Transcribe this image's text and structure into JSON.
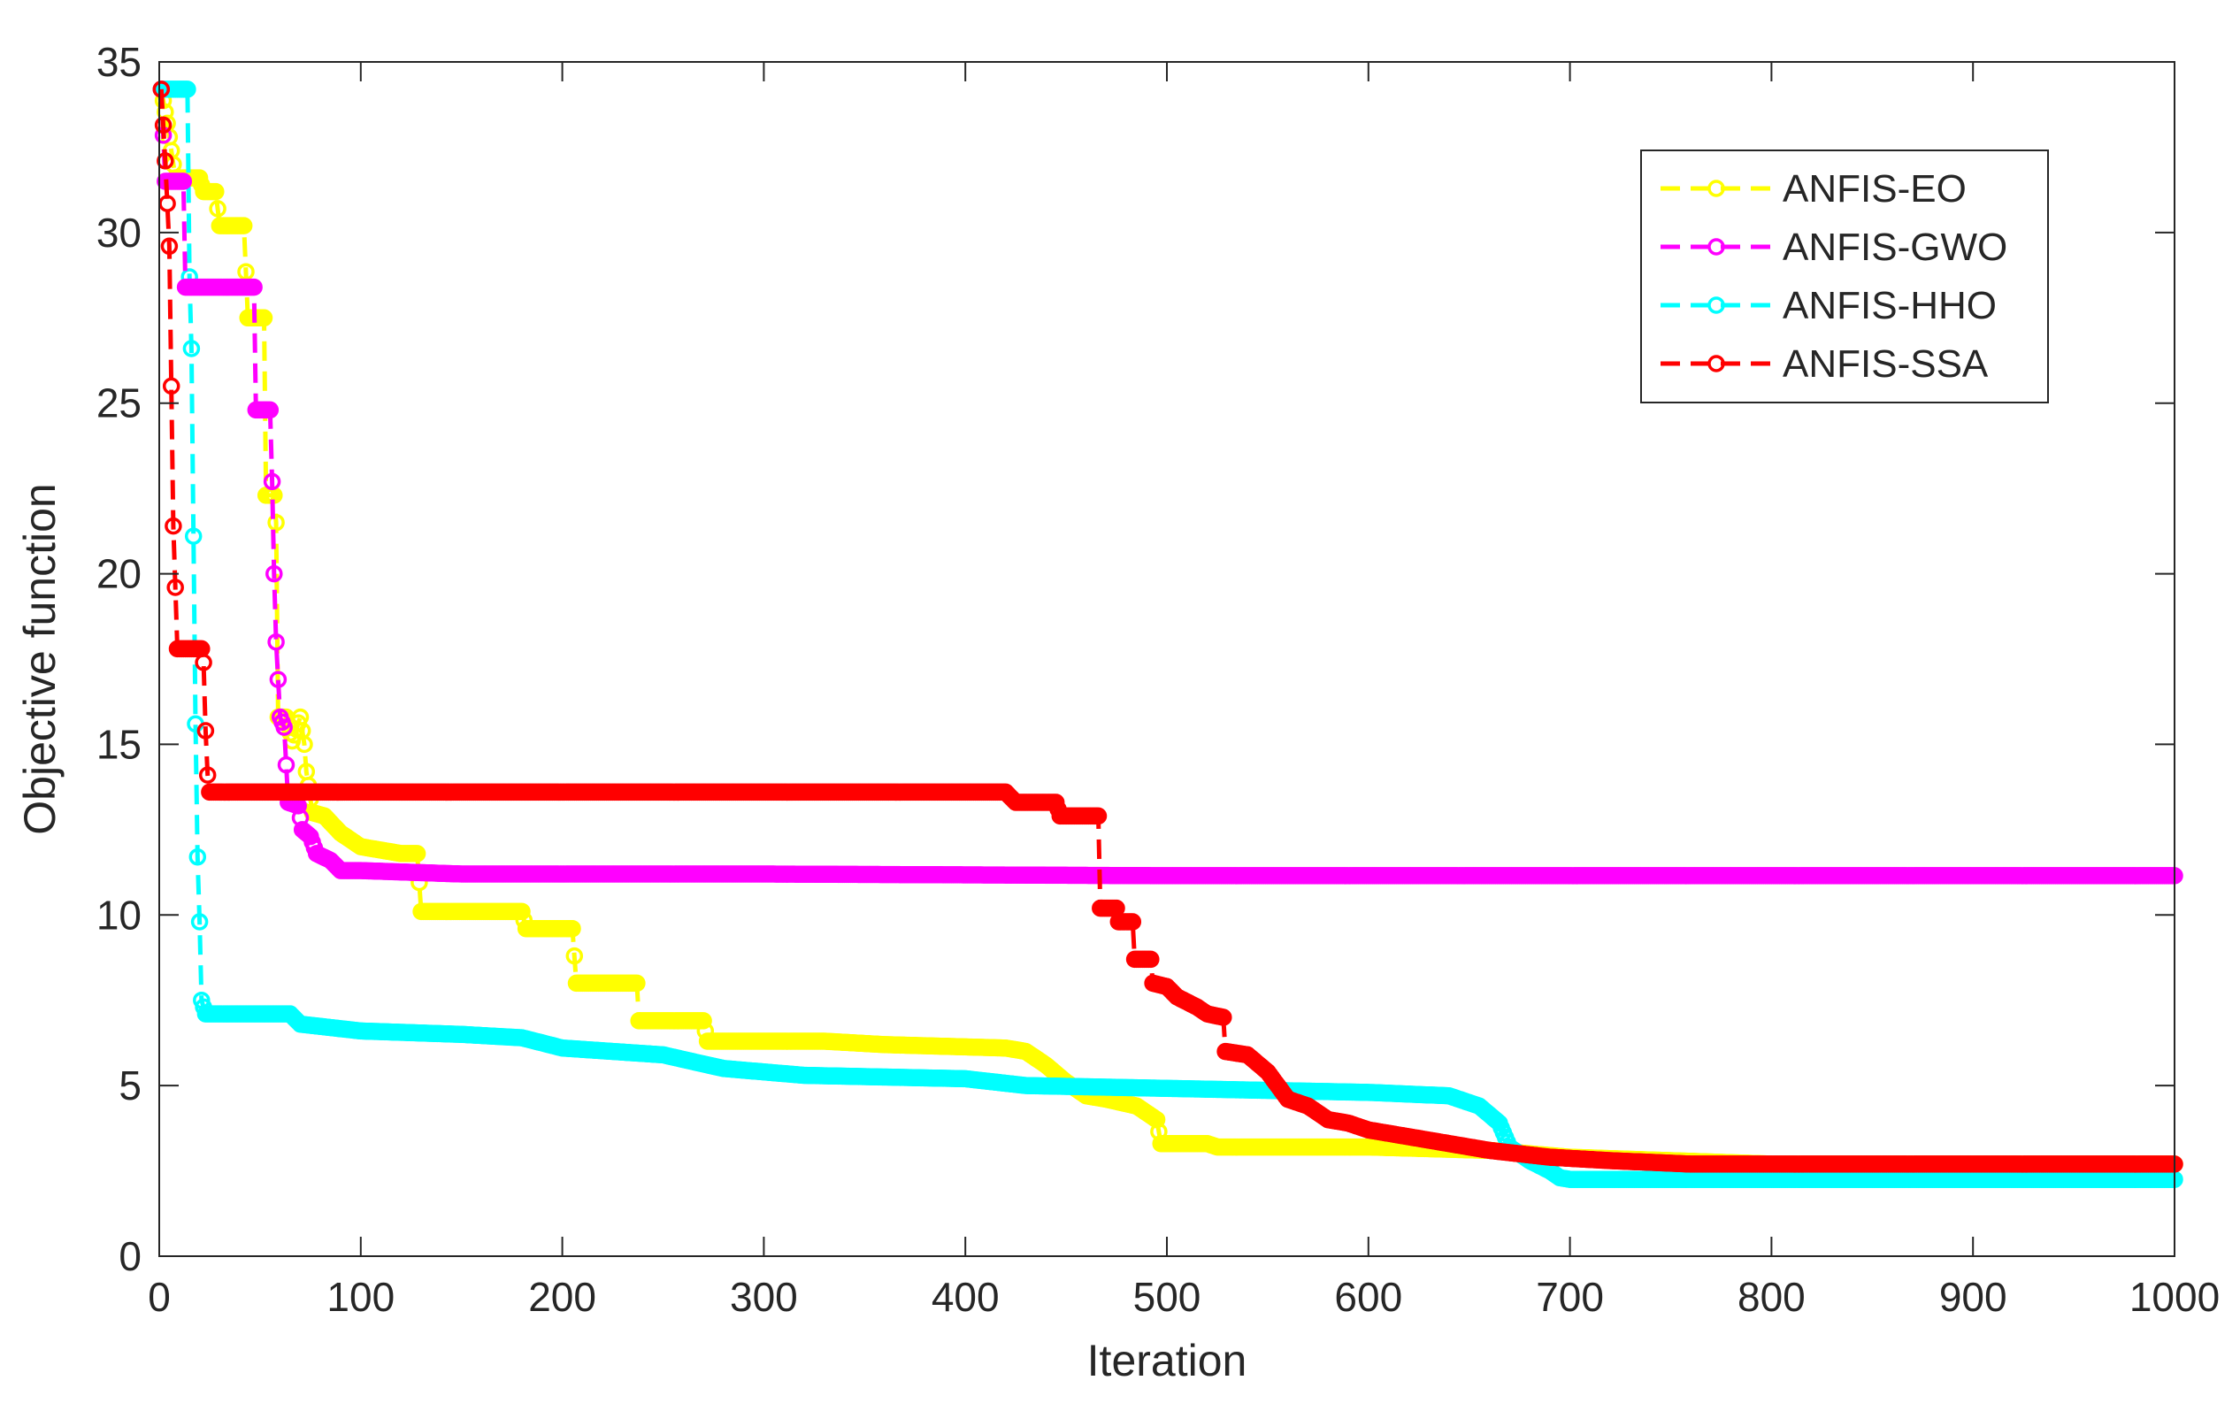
{
  "chart_data": {
    "type": "line",
    "title": "",
    "xlabel": "Iteration",
    "ylabel": "Objective function",
    "xlim": [
      0,
      1000
    ],
    "ylim": [
      0,
      35
    ],
    "xticks": [
      "0",
      "100",
      "200",
      "300",
      "400",
      "500",
      "600",
      "700",
      "800",
      "900",
      "1000"
    ],
    "yticks": [
      "0",
      "5",
      "10",
      "15",
      "20",
      "25",
      "30",
      "35"
    ],
    "grid": false,
    "legend_position": "top-right",
    "series": [
      {
        "name": "ANFIS-EO",
        "color": "#FFFF00",
        "line_style": "dashed",
        "marker": "circle",
        "points": [
          [
            1,
            34.2
          ],
          [
            4,
            33.2
          ],
          [
            8,
            31.6
          ],
          [
            20,
            31.6
          ],
          [
            22,
            31.2
          ],
          [
            28,
            31.2
          ],
          [
            30,
            30.2
          ],
          [
            42,
            30.2
          ],
          [
            44,
            27.5
          ],
          [
            52,
            27.5
          ],
          [
            53,
            22.3
          ],
          [
            57,
            22.3
          ],
          [
            58,
            21.5
          ],
          [
            59,
            15.8
          ],
          [
            63,
            15.8
          ],
          [
            66,
            15.1
          ],
          [
            70,
            15.8
          ],
          [
            72,
            15.0
          ],
          [
            73,
            14.2
          ],
          [
            76,
            13.0
          ],
          [
            82,
            12.9
          ],
          [
            90,
            12.4
          ],
          [
            100,
            12.0
          ],
          [
            110,
            11.9
          ],
          [
            120,
            11.8
          ],
          [
            128,
            11.8
          ],
          [
            130,
            10.1
          ],
          [
            150,
            10.1
          ],
          [
            180,
            10.1
          ],
          [
            182,
            9.6
          ],
          [
            205,
            9.6
          ],
          [
            207,
            8.0
          ],
          [
            237,
            8.0
          ],
          [
            238,
            6.9
          ],
          [
            270,
            6.9
          ],
          [
            272,
            6.3
          ],
          [
            300,
            6.3
          ],
          [
            330,
            6.3
          ],
          [
            360,
            6.2
          ],
          [
            420,
            6.1
          ],
          [
            430,
            6.0
          ],
          [
            440,
            5.6
          ],
          [
            450,
            5.1
          ],
          [
            460,
            4.7
          ],
          [
            470,
            4.6
          ],
          [
            485,
            4.4
          ],
          [
            495,
            4.0
          ],
          [
            497,
            3.3
          ],
          [
            520,
            3.3
          ],
          [
            525,
            3.2
          ],
          [
            600,
            3.2
          ],
          [
            660,
            3.1
          ],
          [
            700,
            2.9
          ],
          [
            750,
            2.8
          ],
          [
            800,
            2.7
          ],
          [
            900,
            2.7
          ],
          [
            1000,
            2.7
          ]
        ]
      },
      {
        "name": "ANFIS-GWO",
        "color": "#FF00FF",
        "line_style": "dashed",
        "marker": "circle",
        "points": [
          [
            1,
            34.2
          ],
          [
            3,
            31.5
          ],
          [
            12,
            31.5
          ],
          [
            13,
            28.4
          ],
          [
            47,
            28.4
          ],
          [
            48,
            24.8
          ],
          [
            55,
            24.8
          ],
          [
            56,
            22.7
          ],
          [
            57,
            20.0
          ],
          [
            58,
            18.0
          ],
          [
            60,
            15.8
          ],
          [
            62,
            15.5
          ],
          [
            64,
            13.3
          ],
          [
            69,
            13.2
          ],
          [
            71,
            12.5
          ],
          [
            75,
            12.3
          ],
          [
            78,
            11.8
          ],
          [
            85,
            11.6
          ],
          [
            90,
            11.3
          ],
          [
            100,
            11.3
          ],
          [
            150,
            11.2
          ],
          [
            300,
            11.2
          ],
          [
            500,
            11.15
          ],
          [
            1000,
            11.15
          ]
        ]
      },
      {
        "name": "ANFIS-HHO",
        "color": "#00FFFF",
        "line_style": "dashed",
        "marker": "circle",
        "points": [
          [
            1,
            34.2
          ],
          [
            14,
            34.2
          ],
          [
            15,
            28.7
          ],
          [
            16,
            26.6
          ],
          [
            18,
            15.6
          ],
          [
            19,
            11.7
          ],
          [
            20,
            9.8
          ],
          [
            21,
            7.5
          ],
          [
            23,
            7.1
          ],
          [
            65,
            7.1
          ],
          [
            70,
            6.8
          ],
          [
            100,
            6.6
          ],
          [
            150,
            6.5
          ],
          [
            180,
            6.4
          ],
          [
            200,
            6.1
          ],
          [
            250,
            5.9
          ],
          [
            280,
            5.5
          ],
          [
            320,
            5.3
          ],
          [
            400,
            5.2
          ],
          [
            430,
            5.0
          ],
          [
            600,
            4.8
          ],
          [
            640,
            4.7
          ],
          [
            655,
            4.4
          ],
          [
            665,
            3.9
          ],
          [
            670,
            3.2
          ],
          [
            680,
            2.8
          ],
          [
            690,
            2.5
          ],
          [
            695,
            2.3
          ],
          [
            700,
            2.25
          ],
          [
            1000,
            2.25
          ]
        ]
      },
      {
        "name": "ANFIS-SSA",
        "color": "#FF0000",
        "line_style": "dashed",
        "marker": "circle",
        "points": [
          [
            1,
            34.2
          ],
          [
            3,
            32.1
          ],
          [
            5,
            29.6
          ],
          [
            7,
            21.4
          ],
          [
            9,
            17.8
          ],
          [
            21,
            17.8
          ],
          [
            22,
            17.4
          ],
          [
            23,
            15.4
          ],
          [
            24,
            14.1
          ],
          [
            25,
            13.6
          ],
          [
            420,
            13.6
          ],
          [
            425,
            13.3
          ],
          [
            445,
            13.3
          ],
          [
            447,
            12.9
          ],
          [
            466,
            12.9
          ],
          [
            467,
            10.2
          ],
          [
            475,
            10.2
          ],
          [
            476,
            9.8
          ],
          [
            483,
            9.8
          ],
          [
            484,
            8.7
          ],
          [
            492,
            8.7
          ],
          [
            493,
            8.0
          ],
          [
            500,
            7.9
          ],
          [
            505,
            7.6
          ],
          [
            515,
            7.3
          ],
          [
            520,
            7.1
          ],
          [
            528,
            7.0
          ],
          [
            529,
            6.0
          ],
          [
            540,
            5.9
          ],
          [
            550,
            5.4
          ],
          [
            555,
            5.0
          ],
          [
            560,
            4.6
          ],
          [
            570,
            4.4
          ],
          [
            580,
            4.0
          ],
          [
            590,
            3.9
          ],
          [
            600,
            3.7
          ],
          [
            620,
            3.5
          ],
          [
            640,
            3.3
          ],
          [
            660,
            3.1
          ],
          [
            690,
            2.9
          ],
          [
            720,
            2.8
          ],
          [
            760,
            2.7
          ],
          [
            850,
            2.7
          ],
          [
            1000,
            2.7
          ]
        ]
      }
    ]
  }
}
